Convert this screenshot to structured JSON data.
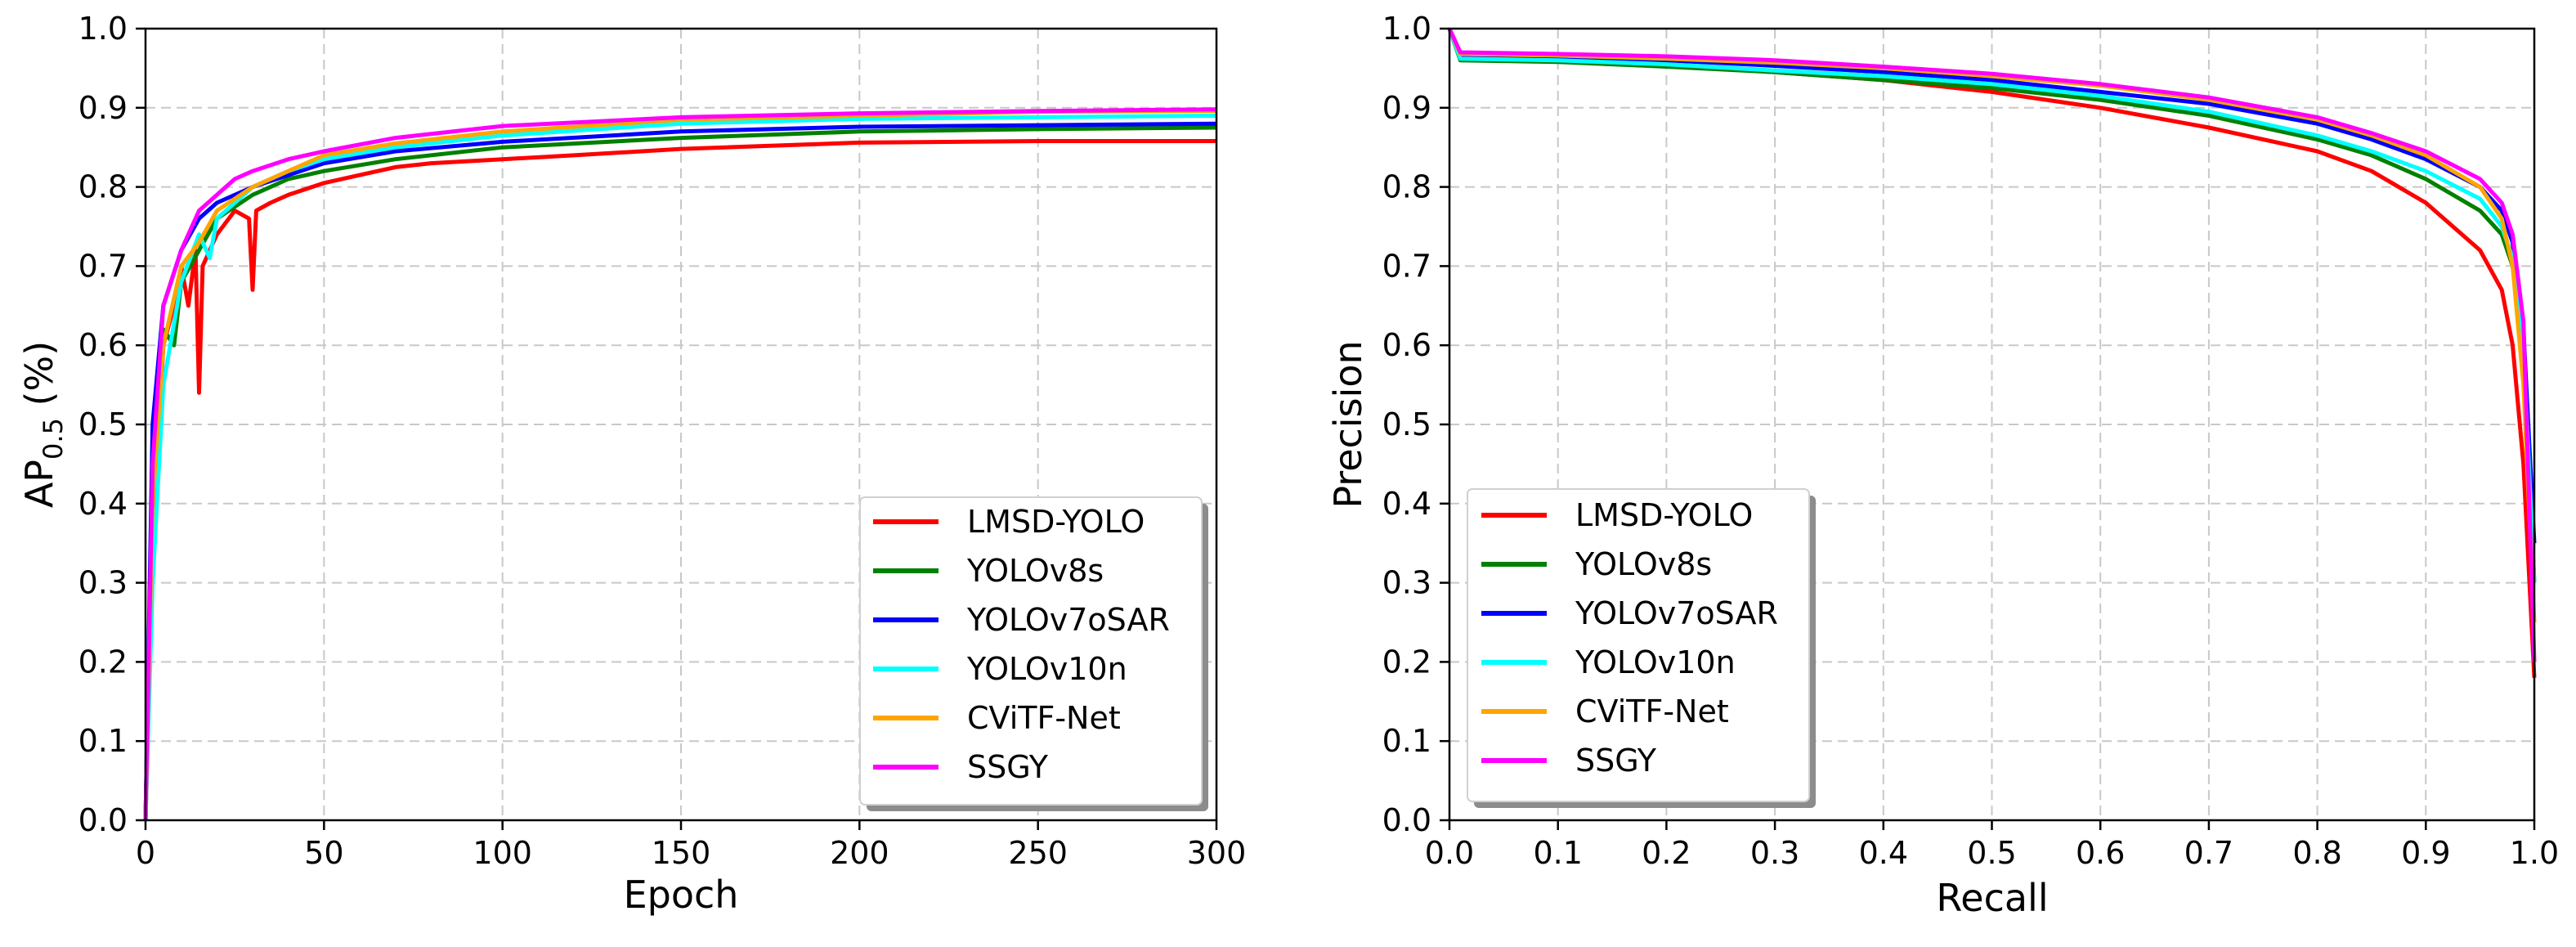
{
  "chart_data": [
    {
      "type": "line",
      "id": "ap-vs-epoch",
      "xlabel": "Epoch",
      "ylabel_main": "AP",
      "ylabel_sub": "0.5",
      "ylabel_suffix": " (%)",
      "xlim": [
        0,
        300
      ],
      "ylim": [
        0.0,
        1.0
      ],
      "xticks": [
        0,
        50,
        100,
        150,
        200,
        250,
        300
      ],
      "xtick_labels": [
        "0",
        "50",
        "100",
        "150",
        "200",
        "250",
        "300"
      ],
      "yticks": [
        0.0,
        0.1,
        0.2,
        0.3,
        0.4,
        0.5,
        0.6,
        0.7,
        0.8,
        0.9,
        1.0
      ],
      "ytick_labels": [
        "0.0",
        "0.1",
        "0.2",
        "0.3",
        "0.4",
        "0.5",
        "0.6",
        "0.7",
        "0.8",
        "0.9",
        "1.0"
      ],
      "grid": true,
      "legend_position": "bottom-right",
      "series": [
        {
          "name": "LMSD-YOLO",
          "color": "#ff0000",
          "x": [
            0,
            2,
            5,
            8,
            10,
            12,
            14,
            15,
            16,
            20,
            25,
            29,
            30,
            31,
            35,
            40,
            50,
            60,
            70,
            80,
            100,
            120,
            150,
            200,
            250,
            300
          ],
          "y": [
            0.0,
            0.35,
            0.6,
            0.65,
            0.7,
            0.65,
            0.72,
            0.54,
            0.7,
            0.74,
            0.77,
            0.76,
            0.67,
            0.77,
            0.78,
            0.79,
            0.805,
            0.815,
            0.825,
            0.83,
            0.835,
            0.84,
            0.848,
            0.856,
            0.858,
            0.858
          ]
        },
        {
          "name": "YOLOv8s",
          "color": "#008000",
          "x": [
            0,
            2,
            5,
            8,
            10,
            15,
            20,
            30,
            40,
            50,
            70,
            100,
            150,
            200,
            250,
            300
          ],
          "y": [
            0.0,
            0.45,
            0.62,
            0.6,
            0.68,
            0.72,
            0.76,
            0.79,
            0.81,
            0.82,
            0.835,
            0.85,
            0.862,
            0.87,
            0.873,
            0.875
          ]
        },
        {
          "name": "YOLOv7oSAR",
          "color": "#0000ff",
          "x": [
            0,
            2,
            5,
            10,
            15,
            20,
            30,
            40,
            50,
            70,
            100,
            150,
            200,
            250,
            300
          ],
          "y": [
            0.0,
            0.5,
            0.65,
            0.72,
            0.76,
            0.78,
            0.8,
            0.815,
            0.83,
            0.845,
            0.857,
            0.87,
            0.876,
            0.878,
            0.88
          ]
        },
        {
          "name": "YOLOv10n",
          "color": "#00ffff",
          "x": [
            0,
            2,
            5,
            10,
            15,
            18,
            20,
            25,
            30,
            40,
            50,
            70,
            100,
            150,
            200,
            250,
            300
          ],
          "y": [
            0.0,
            0.3,
            0.55,
            0.68,
            0.74,
            0.71,
            0.76,
            0.78,
            0.8,
            0.82,
            0.835,
            0.85,
            0.865,
            0.88,
            0.886,
            0.888,
            0.89
          ]
        },
        {
          "name": "CViTF-Net",
          "color": "#ffa500",
          "x": [
            0,
            2,
            5,
            10,
            15,
            20,
            30,
            40,
            50,
            70,
            100,
            150,
            200,
            250,
            300
          ],
          "y": [
            0.0,
            0.4,
            0.6,
            0.7,
            0.73,
            0.77,
            0.8,
            0.82,
            0.84,
            0.855,
            0.87,
            0.885,
            0.89,
            0.895,
            0.896
          ]
        },
        {
          "name": "SSGY",
          "color": "#ff00ff",
          "x": [
            0,
            2,
            5,
            10,
            15,
            20,
            25,
            30,
            40,
            50,
            70,
            100,
            150,
            200,
            250,
            300
          ],
          "y": [
            0.0,
            0.45,
            0.65,
            0.72,
            0.77,
            0.79,
            0.81,
            0.82,
            0.835,
            0.845,
            0.862,
            0.877,
            0.888,
            0.893,
            0.896,
            0.898
          ]
        }
      ]
    },
    {
      "type": "line",
      "id": "precision-recall",
      "xlabel": "Recall",
      "ylabel": "Precision",
      "xlim": [
        0.0,
        1.0
      ],
      "ylim": [
        0.0,
        1.0
      ],
      "xticks": [
        0.0,
        0.1,
        0.2,
        0.3,
        0.4,
        0.5,
        0.6,
        0.7,
        0.8,
        0.9,
        1.0
      ],
      "xtick_labels": [
        "0.0",
        "0.1",
        "0.2",
        "0.3",
        "0.4",
        "0.5",
        "0.6",
        "0.7",
        "0.8",
        "0.9",
        "1.0"
      ],
      "yticks": [
        0.0,
        0.1,
        0.2,
        0.3,
        0.4,
        0.5,
        0.6,
        0.7,
        0.8,
        0.9,
        1.0
      ],
      "ytick_labels": [
        "0.0",
        "0.1",
        "0.2",
        "0.3",
        "0.4",
        "0.5",
        "0.6",
        "0.7",
        "0.8",
        "0.9",
        "1.0"
      ],
      "grid": true,
      "legend_position": "bottom-left",
      "series": [
        {
          "name": "LMSD-YOLO",
          "color": "#ff0000",
          "x": [
            0.0,
            0.01,
            0.1,
            0.2,
            0.3,
            0.4,
            0.5,
            0.6,
            0.7,
            0.8,
            0.85,
            0.9,
            0.95,
            0.97,
            0.98,
            0.99,
            1.0
          ],
          "y": [
            1.0,
            0.965,
            0.962,
            0.955,
            0.945,
            0.935,
            0.92,
            0.9,
            0.875,
            0.845,
            0.82,
            0.78,
            0.72,
            0.67,
            0.6,
            0.45,
            0.18
          ]
        },
        {
          "name": "YOLOv8s",
          "color": "#008000",
          "x": [
            0.0,
            0.01,
            0.1,
            0.2,
            0.3,
            0.4,
            0.5,
            0.6,
            0.7,
            0.8,
            0.85,
            0.9,
            0.95,
            0.97,
            0.98,
            0.99,
            1.0
          ],
          "y": [
            1.0,
            0.96,
            0.958,
            0.952,
            0.945,
            0.935,
            0.925,
            0.91,
            0.89,
            0.86,
            0.84,
            0.81,
            0.77,
            0.74,
            0.7,
            0.6,
            0.3
          ]
        },
        {
          "name": "YOLOv7oSAR",
          "color": "#0000ff",
          "x": [
            0.0,
            0.01,
            0.1,
            0.2,
            0.3,
            0.4,
            0.5,
            0.6,
            0.7,
            0.8,
            0.85,
            0.9,
            0.95,
            0.97,
            0.98,
            0.99,
            1.0
          ],
          "y": [
            1.0,
            0.965,
            0.963,
            0.96,
            0.953,
            0.945,
            0.935,
            0.92,
            0.905,
            0.88,
            0.86,
            0.835,
            0.8,
            0.77,
            0.73,
            0.62,
            0.35
          ]
        },
        {
          "name": "YOLOv10n",
          "color": "#00ffff",
          "x": [
            0.0,
            0.01,
            0.1,
            0.2,
            0.3,
            0.4,
            0.5,
            0.6,
            0.7,
            0.8,
            0.85,
            0.9,
            0.95,
            0.97,
            0.98,
            0.99,
            1.0
          ],
          "y": [
            1.0,
            0.962,
            0.96,
            0.955,
            0.947,
            0.94,
            0.93,
            0.915,
            0.895,
            0.865,
            0.845,
            0.82,
            0.785,
            0.75,
            0.71,
            0.6,
            0.3
          ]
        },
        {
          "name": "CViTF-Net",
          "color": "#ffa500",
          "x": [
            0.0,
            0.01,
            0.1,
            0.2,
            0.3,
            0.4,
            0.5,
            0.6,
            0.7,
            0.8,
            0.85,
            0.9,
            0.95,
            0.97,
            0.98,
            0.99,
            1.0
          ],
          "y": [
            1.0,
            0.968,
            0.966,
            0.962,
            0.957,
            0.95,
            0.94,
            0.928,
            0.91,
            0.885,
            0.865,
            0.84,
            0.8,
            0.76,
            0.7,
            0.55,
            0.25
          ]
        },
        {
          "name": "SSGY",
          "color": "#ff00ff",
          "x": [
            0.0,
            0.01,
            0.1,
            0.2,
            0.3,
            0.4,
            0.5,
            0.6,
            0.7,
            0.8,
            0.85,
            0.9,
            0.95,
            0.97,
            0.98,
            0.99,
            1.0
          ],
          "y": [
            1.0,
            0.97,
            0.968,
            0.965,
            0.96,
            0.952,
            0.943,
            0.93,
            0.913,
            0.888,
            0.868,
            0.845,
            0.81,
            0.78,
            0.74,
            0.63,
            0.2
          ]
        }
      ]
    }
  ]
}
